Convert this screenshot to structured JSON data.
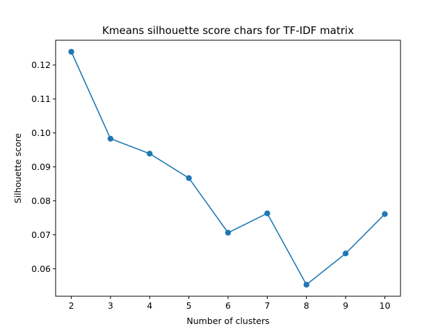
{
  "chart_data": {
    "type": "line",
    "title": "Kmeans silhouette score chars for TF-IDF matrix",
    "xlabel": "Number of clusters",
    "ylabel": "Silhouette score",
    "x": [
      2,
      3,
      4,
      5,
      6,
      7,
      8,
      9,
      10
    ],
    "series": [
      {
        "values": [
          0.1239,
          0.0983,
          0.0939,
          0.0867,
          0.0706,
          0.0763,
          0.0553,
          0.0645,
          0.0761
        ],
        "color": "#1f77b4",
        "marker": "circle"
      }
    ],
    "xticks": [
      2,
      3,
      4,
      5,
      6,
      7,
      8,
      9,
      10
    ],
    "yticks": [
      0.06,
      0.07,
      0.08,
      0.09,
      0.1,
      0.11,
      0.12
    ],
    "ytick_labels": [
      "0.06",
      "0.07",
      "0.08",
      "0.09",
      "0.10",
      "0.11",
      "0.12"
    ],
    "xlim": [
      1.6,
      10.4
    ],
    "ylim": [
      0.0519,
      0.1273
    ],
    "grid": false,
    "legend": false
  }
}
